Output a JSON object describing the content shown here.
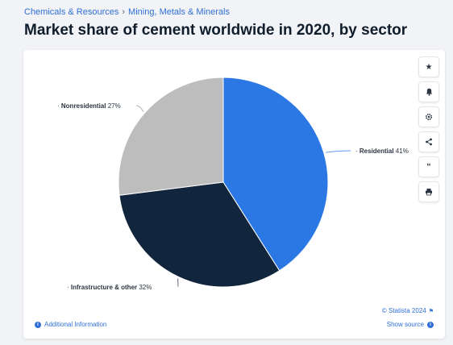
{
  "breadcrumb": {
    "item1": "Chemicals & Resources",
    "separator": "›",
    "item2": "Mining, Metals & Minerals"
  },
  "page_title": "Market share of cement worldwide in 2020, by sector",
  "toolbar": {
    "favorite_icon": "star-icon",
    "notify_icon": "bell-icon",
    "settings_icon": "gear-icon",
    "share_icon": "share-icon",
    "cite_icon": "quote-icon",
    "print_icon": "printer-icon"
  },
  "footer": {
    "additional_info": "Additional Information",
    "copyright": "© Statista 2024",
    "show_source": "Show source"
  },
  "colors": {
    "residential": "#2b78e4",
    "infrastructure": "#11253c",
    "nonresidential": "#bdbdbd",
    "accent": "#2f6fd6"
  },
  "chart_data": {
    "type": "pie",
    "title": "",
    "slices": [
      {
        "label": "Residential",
        "value": 41,
        "display": "41%",
        "color": "#2b78e4"
      },
      {
        "label": "Infrastructure & other",
        "value": 32,
        "display": "32%",
        "color": "#11253c"
      },
      {
        "label": "Nonresidential",
        "value": 27,
        "display": "27%",
        "color": "#bdbdbd"
      }
    ]
  }
}
